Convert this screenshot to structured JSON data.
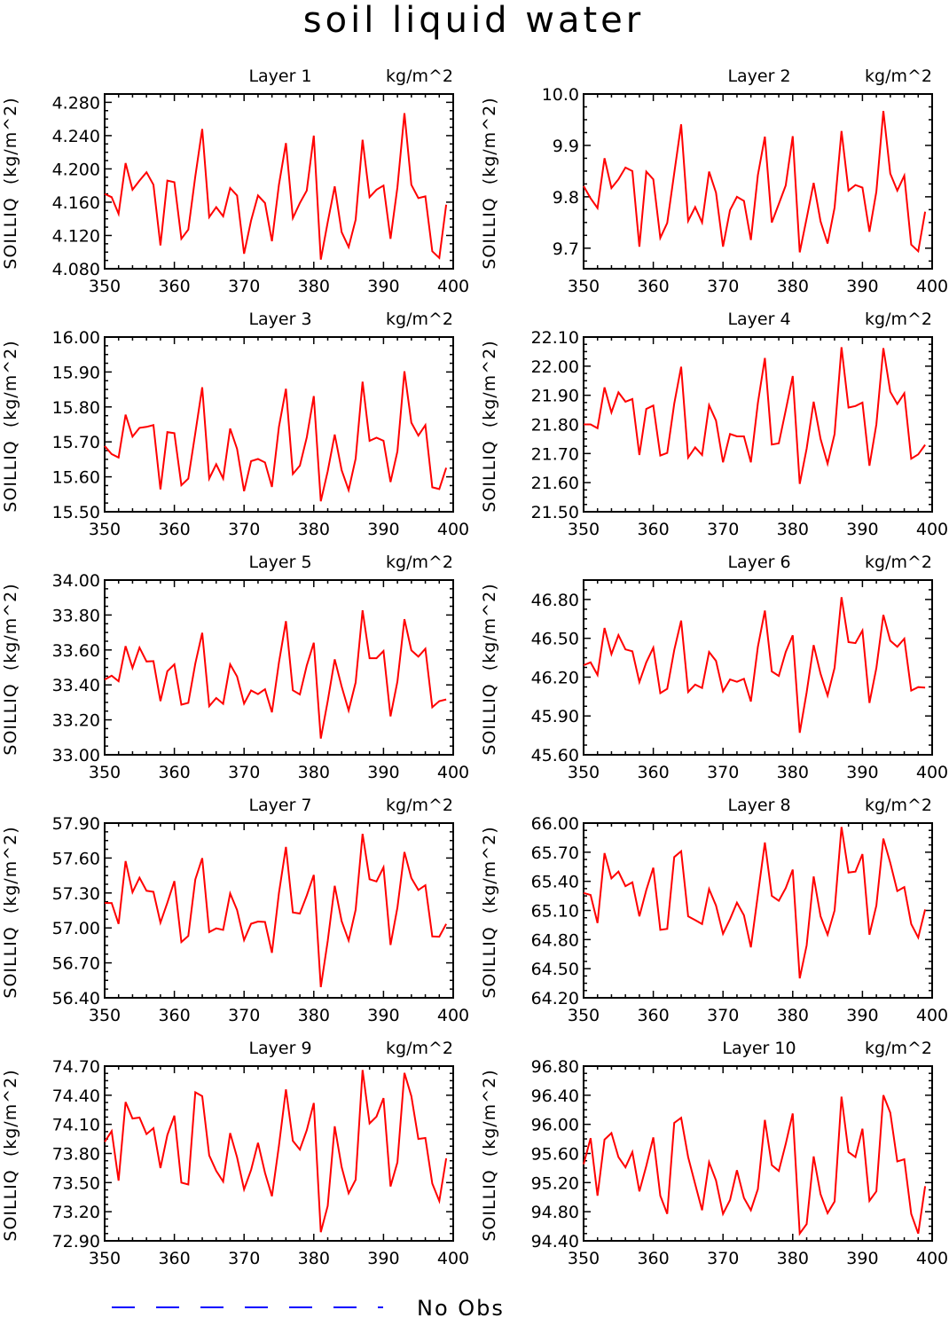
{
  "figure": {
    "title": "soil liquid water",
    "legend": {
      "label": "No Obs",
      "line_color": "#0000ff",
      "line_style": "dashed"
    }
  },
  "chart_data": [
    {
      "type": "line",
      "title": "Layer 1",
      "units": "kg/m^2",
      "ylabel": "SOILLIQ  (kg/m^2)",
      "xlim": [
        350,
        400
      ],
      "xticks": [
        350,
        360,
        370,
        380,
        390,
        400
      ],
      "ylim": [
        4.08,
        4.29
      ],
      "yticks": [
        4.08,
        4.12,
        4.16,
        4.2,
        4.24,
        4.28
      ],
      "ytick_decimals": 3,
      "series": [
        {
          "color": "#ff0000",
          "x_start": 350,
          "x_step": 1,
          "values": [
            4.17,
            4.166,
            4.146,
            4.207,
            4.175,
            4.186,
            4.196,
            4.181,
            4.108,
            4.186,
            4.184,
            4.116,
            4.127,
            4.191,
            4.248,
            4.142,
            4.154,
            4.143,
            4.177,
            4.168,
            4.098,
            4.138,
            4.168,
            4.159,
            4.113,
            4.181,
            4.231,
            4.141,
            4.159,
            4.174,
            4.24,
            4.091,
            4.136,
            4.179,
            4.124,
            4.106,
            4.139,
            4.235,
            4.166,
            4.175,
            4.18,
            4.116,
            4.178,
            4.267,
            4.181,
            4.165,
            4.167,
            4.101,
            4.093,
            4.157
          ]
        }
      ],
      "grid": false,
      "legend": "bottom"
    },
    {
      "type": "line",
      "title": "Layer 2",
      "units": "kg/m^2",
      "ylabel": "SOILLIQ  (kg/m^2)",
      "xlim": [
        350,
        400
      ],
      "xticks": [
        350,
        360,
        370,
        380,
        390,
        400
      ],
      "ylim": [
        9.66,
        10.0
      ],
      "yticks": [
        9.7,
        9.8,
        9.9,
        10.0
      ],
      "ytick_decimals": 1,
      "series": [
        {
          "color": "#ff0000",
          "x_start": 350,
          "x_step": 1,
          "values": [
            9.821,
            9.797,
            9.778,
            9.875,
            9.817,
            9.834,
            9.857,
            9.85,
            9.703,
            9.849,
            9.834,
            9.72,
            9.749,
            9.846,
            9.941,
            9.753,
            9.78,
            9.75,
            9.849,
            9.808,
            9.703,
            9.774,
            9.8,
            9.792,
            9.716,
            9.842,
            9.917,
            9.75,
            9.786,
            9.822,
            9.918,
            9.692,
            9.758,
            9.827,
            9.752,
            9.709,
            9.779,
            9.928,
            9.812,
            9.823,
            9.818,
            9.732,
            9.81,
            9.967,
            9.845,
            9.812,
            9.841,
            9.707,
            9.694,
            9.771
          ]
        }
      ],
      "grid": false,
      "legend": "bottom"
    },
    {
      "type": "line",
      "title": "Layer 3",
      "units": "kg/m^2",
      "ylabel": "SOILLIQ  (kg/m^2)",
      "xlim": [
        350,
        400
      ],
      "xticks": [
        350,
        360,
        370,
        380,
        390,
        400
      ],
      "ylim": [
        15.5,
        16.0
      ],
      "yticks": [
        15.5,
        15.6,
        15.7,
        15.8,
        15.9,
        16.0
      ],
      "ytick_decimals": 2,
      "series": [
        {
          "color": "#ff0000",
          "x_start": 350,
          "x_step": 1,
          "values": [
            15.688,
            15.665,
            15.655,
            15.778,
            15.715,
            15.74,
            15.743,
            15.748,
            15.564,
            15.728,
            15.725,
            15.576,
            15.595,
            15.725,
            15.856,
            15.595,
            15.636,
            15.595,
            15.738,
            15.68,
            15.559,
            15.645,
            15.651,
            15.641,
            15.571,
            15.743,
            15.852,
            15.608,
            15.632,
            15.713,
            15.831,
            15.53,
            15.616,
            15.721,
            15.619,
            15.562,
            15.652,
            15.872,
            15.703,
            15.712,
            15.703,
            15.585,
            15.673,
            15.902,
            15.755,
            15.718,
            15.748,
            15.57,
            15.565,
            15.626
          ]
        }
      ],
      "grid": false,
      "legend": "bottom"
    },
    {
      "type": "line",
      "title": "Layer 4",
      "units": "kg/m^2",
      "ylabel": "SOILLIQ  (kg/m^2)",
      "xlim": [
        350,
        400
      ],
      "xticks": [
        350,
        360,
        370,
        380,
        390,
        400
      ],
      "ylim": [
        21.5,
        22.1
      ],
      "yticks": [
        21.5,
        21.6,
        21.7,
        21.8,
        21.9,
        22.0,
        22.1
      ],
      "ytick_decimals": 2,
      "series": [
        {
          "color": "#ff0000",
          "x_start": 350,
          "x_step": 1,
          "values": [
            21.8,
            21.8,
            21.787,
            21.927,
            21.841,
            21.91,
            21.878,
            21.887,
            21.695,
            21.853,
            21.865,
            21.693,
            21.702,
            21.871,
            21.998,
            21.686,
            21.721,
            21.695,
            21.866,
            21.813,
            21.67,
            21.767,
            21.759,
            21.759,
            21.67,
            21.873,
            22.028,
            21.731,
            21.735,
            21.848,
            21.966,
            21.596,
            21.717,
            21.878,
            21.75,
            21.665,
            21.767,
            22.065,
            21.858,
            21.863,
            21.875,
            21.658,
            21.8,
            22.062,
            21.912,
            21.87,
            21.907,
            21.682,
            21.697,
            21.73
          ]
        }
      ],
      "grid": false,
      "legend": "bottom"
    },
    {
      "type": "line",
      "title": "Layer 5",
      "units": "kg/m^2",
      "ylabel": "SOILLIQ  (kg/m^2)",
      "xlim": [
        350,
        400
      ],
      "xticks": [
        350,
        360,
        370,
        380,
        390,
        400
      ],
      "ylim": [
        33.0,
        34.0
      ],
      "yticks": [
        33.0,
        33.2,
        33.4,
        33.6,
        33.8,
        34.0
      ],
      "ytick_decimals": 2,
      "series": [
        {
          "color": "#ff0000",
          "x_start": 350,
          "x_step": 1,
          "values": [
            33.43,
            33.453,
            33.421,
            33.622,
            33.497,
            33.613,
            33.534,
            33.536,
            33.307,
            33.478,
            33.518,
            33.287,
            33.297,
            33.522,
            33.698,
            33.278,
            33.325,
            33.292,
            33.518,
            33.448,
            33.293,
            33.368,
            33.347,
            33.375,
            33.243,
            33.528,
            33.765,
            33.369,
            33.345,
            33.511,
            33.641,
            33.093,
            33.307,
            33.546,
            33.391,
            33.254,
            33.414,
            33.827,
            33.553,
            33.553,
            33.594,
            33.22,
            33.42,
            33.776,
            33.598,
            33.562,
            33.607,
            33.272,
            33.307,
            33.317
          ]
        }
      ],
      "grid": false,
      "legend": "bottom"
    },
    {
      "type": "line",
      "title": "Layer 6",
      "units": "kg/m^2",
      "ylabel": "SOILLIQ  (kg/m^2)",
      "xlim": [
        350,
        400
      ],
      "xticks": [
        350,
        360,
        370,
        380,
        390,
        400
      ],
      "ylim": [
        45.6,
        46.95
      ],
      "yticks": [
        45.6,
        45.9,
        46.2,
        46.5,
        46.8
      ],
      "ytick_decimals": 2,
      "series": [
        {
          "color": "#ff0000",
          "x_start": 350,
          "x_step": 1,
          "values": [
            46.292,
            46.314,
            46.217,
            46.58,
            46.378,
            46.525,
            46.414,
            46.4,
            46.162,
            46.314,
            46.428,
            46.076,
            46.11,
            46.409,
            46.637,
            46.085,
            46.143,
            46.117,
            46.394,
            46.326,
            46.09,
            46.182,
            46.164,
            46.187,
            46.011,
            46.434,
            46.714,
            46.244,
            46.209,
            46.394,
            46.523,
            45.77,
            46.082,
            46.448,
            46.226,
            46.057,
            46.272,
            46.818,
            46.47,
            46.463,
            46.56,
            46.001,
            46.27,
            46.681,
            46.481,
            46.435,
            46.497,
            46.096,
            46.123,
            46.119
          ]
        }
      ],
      "grid": false,
      "legend": "bottom"
    },
    {
      "type": "line",
      "title": "Layer 7",
      "units": "kg/m^2",
      "ylabel": "SOILLIQ  (kg/m^2)",
      "xlim": [
        350,
        400
      ],
      "xticks": [
        350,
        360,
        370,
        380,
        390,
        400
      ],
      "ylim": [
        56.4,
        57.9
      ],
      "yticks": [
        56.4,
        56.7,
        57.0,
        57.3,
        57.6,
        57.9
      ],
      "ytick_decimals": 2,
      "series": [
        {
          "color": "#ff0000",
          "x_start": 350,
          "x_step": 1,
          "values": [
            57.214,
            57.214,
            57.034,
            57.574,
            57.306,
            57.431,
            57.319,
            57.31,
            57.045,
            57.216,
            57.402,
            56.879,
            56.931,
            57.416,
            57.599,
            56.964,
            56.996,
            56.983,
            57.296,
            57.154,
            56.896,
            57.036,
            57.055,
            57.051,
            56.786,
            57.299,
            57.695,
            57.133,
            57.123,
            57.279,
            57.455,
            56.491,
            56.887,
            57.362,
            57.058,
            56.893,
            57.156,
            57.808,
            57.418,
            57.399,
            57.52,
            56.854,
            57.175,
            57.652,
            57.428,
            57.326,
            57.366,
            56.927,
            56.925,
            57.034
          ]
        }
      ],
      "grid": false,
      "legend": "bottom"
    },
    {
      "type": "line",
      "title": "Layer 8",
      "units": "kg/m^2",
      "ylabel": "SOILLIQ  (kg/m^2)",
      "xlim": [
        350,
        400
      ],
      "xticks": [
        350,
        360,
        370,
        380,
        390,
        400
      ],
      "ylim": [
        64.2,
        66.0
      ],
      "yticks": [
        64.2,
        64.5,
        64.8,
        65.1,
        65.4,
        65.7,
        66.0
      ],
      "ytick_decimals": 2,
      "series": [
        {
          "color": "#ff0000",
          "x_start": 350,
          "x_step": 1,
          "values": [
            65.28,
            65.26,
            64.97,
            65.69,
            65.43,
            65.5,
            65.35,
            65.39,
            65.04,
            65.31,
            65.54,
            64.9,
            64.91,
            65.65,
            65.71,
            65.04,
            65.0,
            64.96,
            65.32,
            65.15,
            64.86,
            65.01,
            65.18,
            65.05,
            64.72,
            65.26,
            65.8,
            65.25,
            65.2,
            65.33,
            65.52,
            64.4,
            64.74,
            65.45,
            65.04,
            64.85,
            65.1,
            65.96,
            65.49,
            65.5,
            65.68,
            64.85,
            65.15,
            65.84,
            65.59,
            65.3,
            65.34,
            64.96,
            64.82,
            65.11
          ]
        }
      ],
      "grid": false,
      "legend": "bottom"
    },
    {
      "type": "line",
      "title": "Layer 9",
      "units": "kg/m^2",
      "ylabel": "SOILLIQ  (kg/m^2)",
      "xlim": [
        350,
        400
      ],
      "xticks": [
        350,
        360,
        370,
        380,
        390,
        400
      ],
      "ylim": [
        72.9,
        74.7
      ],
      "yticks": [
        72.9,
        73.2,
        73.5,
        73.8,
        74.1,
        74.4,
        74.7
      ],
      "ytick_decimals": 2,
      "series": [
        {
          "color": "#ff0000",
          "x_start": 350,
          "x_step": 1,
          "values": [
            73.92,
            74.03,
            73.52,
            74.33,
            74.16,
            74.17,
            74.0,
            74.06,
            73.65,
            73.99,
            74.19,
            73.5,
            73.48,
            74.43,
            74.39,
            73.78,
            73.62,
            73.51,
            74.01,
            73.76,
            73.43,
            73.63,
            73.91,
            73.6,
            73.36,
            73.88,
            74.46,
            73.93,
            73.84,
            74.04,
            74.32,
            72.99,
            73.26,
            74.08,
            73.66,
            73.39,
            73.53,
            74.66,
            74.11,
            74.18,
            74.37,
            73.46,
            73.71,
            74.63,
            74.39,
            73.95,
            73.96,
            73.49,
            73.31,
            73.75
          ]
        }
      ],
      "grid": false,
      "legend": "bottom"
    },
    {
      "type": "line",
      "title": "Layer 10",
      "units": "kg/m^2",
      "ylabel": "SOILLIQ  (kg/m^2)",
      "xlim": [
        350,
        400
      ],
      "xticks": [
        350,
        360,
        370,
        380,
        390,
        400
      ],
      "ylim": [
        94.4,
        96.8
      ],
      "yticks": [
        94.4,
        94.8,
        95.2,
        95.6,
        96.0,
        96.4,
        96.8
      ],
      "ytick_decimals": 2,
      "series": [
        {
          "color": "#ff0000",
          "x_start": 350,
          "x_step": 1,
          "values": [
            95.45,
            95.81,
            95.02,
            95.79,
            95.88,
            95.55,
            95.41,
            95.62,
            95.08,
            95.43,
            95.82,
            95.02,
            94.77,
            96.02,
            96.09,
            95.55,
            95.18,
            94.82,
            95.48,
            95.23,
            94.77,
            94.96,
            95.37,
            94.99,
            94.82,
            95.11,
            96.06,
            95.44,
            95.36,
            95.73,
            96.15,
            94.5,
            94.63,
            95.56,
            95.04,
            94.78,
            94.94,
            96.38,
            95.62,
            95.55,
            95.94,
            94.95,
            95.08,
            96.4,
            96.16,
            95.49,
            95.52,
            94.77,
            94.5,
            95.15
          ]
        }
      ],
      "grid": false,
      "legend": "bottom"
    }
  ]
}
